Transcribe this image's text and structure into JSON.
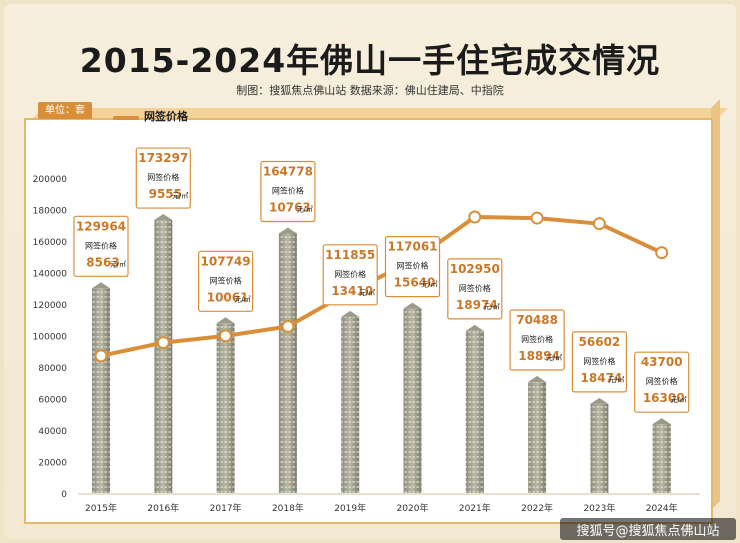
{
  "title": "2015-2024年佛山一手住宅成交情况",
  "subtitle": "制图：搜狐焦点佛山站 数据来源：佛山住建局、中指院",
  "unit_label": "单位：套",
  "footer": "搜狐号@搜狐焦点佛山站",
  "colors": {
    "accent": "#d98e3a",
    "label_border": "#d98e3a",
    "label_value": "#c9782a"
  },
  "chart_data": {
    "type": "bar",
    "categories": [
      "2015年",
      "2016年",
      "2017年",
      "2018年",
      "2019年",
      "2020年",
      "2021年",
      "2022年",
      "2023年",
      "2024年"
    ],
    "series": [
      {
        "values": [
          129964,
          173297,
          107749,
          164778,
          111855,
          117061,
          102950,
          70488,
          56602,
          43700
        ]
      },
      {
        "name": "网签价格",
        "type": "line",
        "values": [
          8563,
          9555,
          10061,
          10763,
          13410,
          15640,
          18974,
          18894,
          18474,
          16300
        ],
        "unit": "元/㎡"
      }
    ],
    "label_caption": "网签价格",
    "y_ticks": [
      0,
      20000,
      40000,
      60000,
      80000,
      100000,
      120000,
      140000,
      160000,
      180000,
      200000
    ],
    "ylim": [
      0,
      200000
    ],
    "grid": false,
    "legend": "top-left"
  }
}
